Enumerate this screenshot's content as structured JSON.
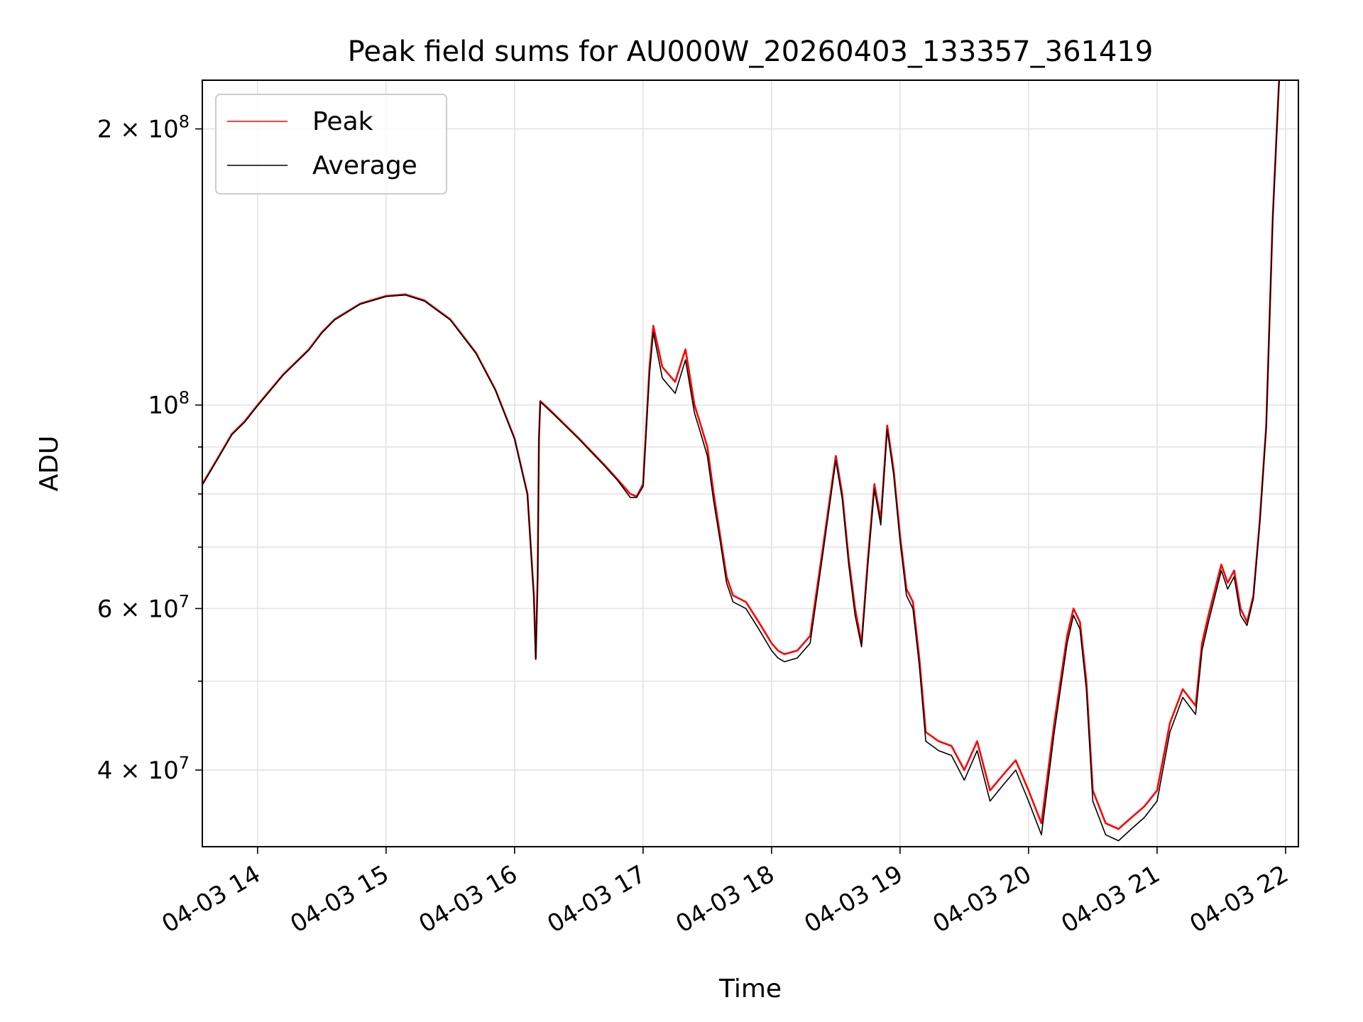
{
  "chart_data": {
    "type": "line",
    "title": "Peak field sums for AU000W_20260403_133357_361419",
    "xlabel": "Time",
    "ylabel": "ADU",
    "y_scale": "log",
    "xlim_hours": [
      13.57,
      22.1
    ],
    "ylim": [
      33000000,
      226000000
    ],
    "grid": true,
    "legend_location": "upper left",
    "x_ticks": [
      {
        "value": 14,
        "label": "04-03 14"
      },
      {
        "value": 15,
        "label": "04-03 15"
      },
      {
        "value": 16,
        "label": "04-03 16"
      },
      {
        "value": 17,
        "label": "04-03 17"
      },
      {
        "value": 18,
        "label": "04-03 18"
      },
      {
        "value": 19,
        "label": "04-03 19"
      },
      {
        "value": 20,
        "label": "04-03 20"
      },
      {
        "value": 21,
        "label": "04-03 21"
      },
      {
        "value": 22,
        "label": "04-03 22"
      }
    ],
    "y_major_ticks": [
      {
        "value": 40000000,
        "base": "4 × 10",
        "exp": "7"
      },
      {
        "value": 60000000,
        "base": "6 × 10",
        "exp": "7"
      },
      {
        "value": 100000000,
        "base": "10",
        "exp": "8"
      },
      {
        "value": 200000000,
        "base": "2 × 10",
        "exp": "8"
      }
    ],
    "y_minor_ticks": [
      50000000,
      70000000,
      80000000,
      90000000
    ],
    "series": [
      {
        "name": "Peak",
        "color": "#ff0000",
        "x": [
          13.57,
          13.7,
          13.8,
          13.9,
          14.0,
          14.2,
          14.4,
          14.5,
          14.6,
          14.8,
          15.0,
          15.15,
          15.3,
          15.5,
          15.7,
          15.85,
          16.0,
          16.1,
          16.15,
          16.165,
          16.18,
          16.19,
          16.2,
          16.3,
          16.5,
          16.7,
          16.8,
          16.9,
          16.95,
          17.0,
          17.05,
          17.08,
          17.15,
          17.25,
          17.33,
          17.4,
          17.45,
          17.5,
          17.55,
          17.6,
          17.65,
          17.7,
          17.8,
          17.9,
          18.0,
          18.05,
          18.1,
          18.2,
          18.3,
          18.4,
          18.5,
          18.55,
          18.6,
          18.65,
          18.7,
          18.75,
          18.8,
          18.85,
          18.9,
          18.95,
          19.0,
          19.05,
          19.1,
          19.15,
          19.2,
          19.3,
          19.4,
          19.5,
          19.6,
          19.7,
          19.8,
          19.9,
          20.0,
          20.1,
          20.2,
          20.3,
          20.35,
          20.4,
          20.45,
          20.5,
          20.6,
          20.7,
          20.8,
          20.9,
          21.0,
          21.1,
          21.2,
          21.3,
          21.35,
          21.4,
          21.5,
          21.55,
          21.6,
          21.65,
          21.7,
          21.75,
          21.8,
          21.85,
          21.9,
          21.95
        ],
        "values": [
          82000000,
          88000000,
          93000000,
          96000000,
          100000000,
          108000000,
          115000000,
          120000000,
          124000000,
          129000000,
          131500000,
          132000000,
          130000000,
          124000000,
          114000000,
          104000000,
          92000000,
          80000000,
          62000000,
          53000000,
          65000000,
          92000000,
          101000000,
          98000000,
          92000000,
          86000000,
          83000000,
          80000000,
          79500000,
          82000000,
          110000000,
          122000000,
          110000000,
          106000000,
          115000000,
          100000000,
          95000000,
          90000000,
          80000000,
          72000000,
          65000000,
          62000000,
          61000000,
          58000000,
          55000000,
          54000000,
          53500000,
          54000000,
          56000000,
          70000000,
          88000000,
          80000000,
          68000000,
          60000000,
          55000000,
          68000000,
          82000000,
          75000000,
          95000000,
          85000000,
          72000000,
          63000000,
          61000000,
          53000000,
          44000000,
          43000000,
          42500000,
          40000000,
          43000000,
          38000000,
          39500000,
          41000000,
          38000000,
          35000000,
          45000000,
          56000000,
          60000000,
          58000000,
          50000000,
          38000000,
          35000000,
          34500000,
          35500000,
          36500000,
          38000000,
          45000000,
          49000000,
          47000000,
          55000000,
          59000000,
          67000000,
          64000000,
          66000000,
          60000000,
          58000000,
          62000000,
          75000000,
          95000000,
          160000000,
          226000000
        ]
      },
      {
        "name": "Average",
        "color": "#000000",
        "x": [
          13.57,
          13.7,
          13.8,
          13.9,
          14.0,
          14.2,
          14.4,
          14.5,
          14.6,
          14.8,
          15.0,
          15.15,
          15.3,
          15.5,
          15.7,
          15.85,
          16.0,
          16.1,
          16.15,
          16.165,
          16.18,
          16.19,
          16.2,
          16.3,
          16.5,
          16.7,
          16.8,
          16.9,
          16.95,
          17.0,
          17.05,
          17.08,
          17.15,
          17.25,
          17.33,
          17.4,
          17.45,
          17.5,
          17.55,
          17.6,
          17.65,
          17.7,
          17.8,
          17.9,
          18.0,
          18.05,
          18.1,
          18.2,
          18.3,
          18.4,
          18.5,
          18.55,
          18.6,
          18.65,
          18.7,
          18.75,
          18.8,
          18.85,
          18.9,
          18.95,
          19.0,
          19.05,
          19.1,
          19.15,
          19.2,
          19.3,
          19.4,
          19.5,
          19.6,
          19.7,
          19.8,
          19.9,
          20.0,
          20.1,
          20.2,
          20.3,
          20.35,
          20.4,
          20.45,
          20.5,
          20.6,
          20.7,
          20.8,
          20.9,
          21.0,
          21.1,
          21.2,
          21.3,
          21.35,
          21.4,
          21.5,
          21.55,
          21.6,
          21.65,
          21.7,
          21.75,
          21.8,
          21.85,
          21.9,
          21.95
        ],
        "values": [
          81800000,
          87800000,
          92800000,
          95800000,
          99800000,
          107800000,
          114800000,
          119800000,
          123800000,
          128800000,
          131300000,
          131800000,
          129800000,
          123800000,
          113800000,
          103800000,
          91800000,
          79800000,
          61800000,
          52800000,
          64800000,
          91800000,
          100800000,
          97800000,
          91800000,
          85800000,
          82800000,
          79300000,
          79300000,
          81500000,
          108000000,
          120000000,
          107000000,
          103000000,
          112000000,
          98000000,
          93000000,
          88000000,
          78500000,
          71000000,
          64000000,
          61000000,
          60000000,
          57000000,
          54000000,
          53000000,
          52500000,
          53000000,
          55000000,
          69000000,
          87000000,
          79000000,
          67000000,
          59000000,
          54500000,
          67000000,
          81000000,
          74000000,
          94000000,
          84000000,
          71000000,
          62000000,
          60000000,
          52000000,
          43000000,
          42000000,
          41500000,
          39000000,
          42000000,
          37000000,
          38500000,
          40000000,
          37000000,
          34000000,
          44000000,
          55000000,
          59000000,
          57000000,
          49000000,
          37000000,
          34000000,
          33500000,
          34500000,
          35500000,
          37000000,
          44000000,
          48000000,
          46000000,
          54000000,
          58000000,
          66000000,
          63000000,
          65000000,
          59000000,
          57500000,
          61500000,
          74500000,
          94500000,
          159000000,
          226000000
        ]
      }
    ]
  }
}
